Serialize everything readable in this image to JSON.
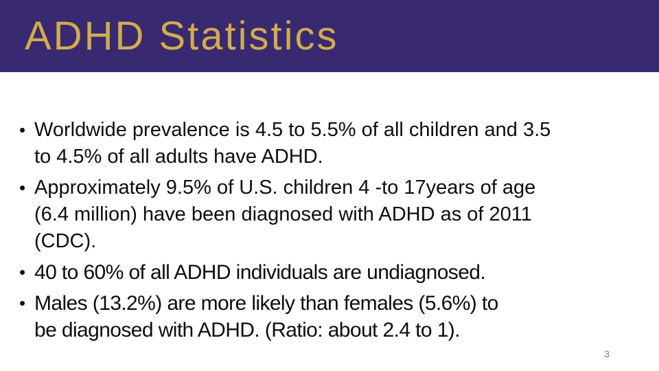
{
  "slide": {
    "title": "ADHD Statistics",
    "bullet_char": "•",
    "bullets": [
      {
        "text": "Worldwide prevalence is 4.5 to 5.5% of all children and 3.5\nto 4.5% of all adults have ADHD."
      },
      {
        "text": "Approximately 9.5% of U.S. children 4 -to 17years of age\n(6.4  million) have been diagnosed with ADHD as of 2011\n(CDC)."
      },
      {
        "text": "40 to 60% of all ADHD individuals are undiagnosed."
      },
      {
        "text": "Males (13.2%) are more likely than females (5.6%) to\nbe diagnosed with ADHD. (Ratio: about 2.4 to 1)."
      }
    ],
    "page_number": "3",
    "colors": {
      "header_bg": "#382970",
      "title": "#d1ac4d",
      "body_text": "#0d0d0d",
      "page_number": "#7f7f7f",
      "background": "#ffffff"
    }
  }
}
